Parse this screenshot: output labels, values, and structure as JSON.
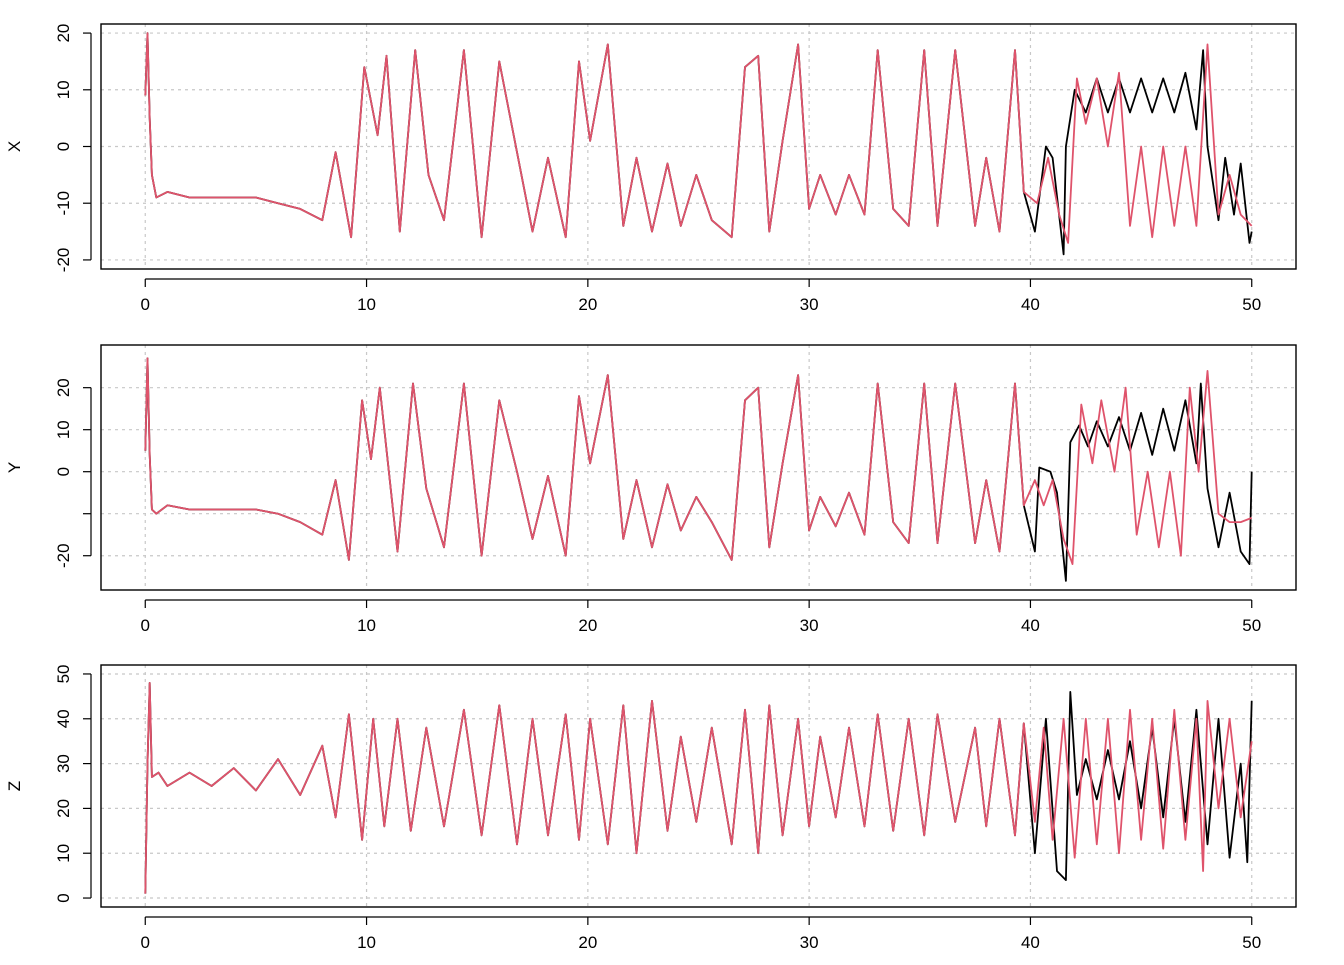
{
  "chart_data": [
    {
      "type": "line",
      "title": "",
      "xlabel": "",
      "ylabel": "X",
      "xlim": [
        0,
        50
      ],
      "ylim": [
        -20,
        20
      ],
      "xticks": [
        0,
        10,
        20,
        30,
        40,
        50
      ],
      "yticks": [
        -20,
        -10,
        0,
        10,
        20
      ],
      "xtick_labels": [
        "0",
        "10",
        "20",
        "30",
        "40",
        "50"
      ],
      "ytick_labels": [
        "-20",
        "-10",
        "0",
        "10",
        "20"
      ],
      "grid": true,
      "series": [
        {
          "color": "#000000",
          "x": [
            0,
            0.1,
            0.2,
            0.3,
            0.5,
            1,
            2,
            3,
            4,
            5,
            6,
            7,
            8,
            8.6,
            9.3,
            9.9,
            10.5,
            10.9,
            11.5,
            12.2,
            12.8,
            13.5,
            14.4,
            15.2,
            16,
            16.8,
            17.5,
            18.2,
            19,
            19.6,
            20.1,
            20.9,
            21.6,
            22.2,
            22.9,
            23.6,
            24.2,
            24.9,
            25.6,
            26.5,
            27.1,
            27.7,
            28.2,
            28.8,
            29.5,
            30,
            30.5,
            31.2,
            31.8,
            32.5,
            33.1,
            33.8,
            34.5,
            35.2,
            35.8,
            36.6,
            37.5,
            38,
            38.6,
            39.3,
            39.7,
            40.2,
            40.7,
            41,
            41.5,
            41.6,
            42,
            42.5,
            43,
            43.5,
            44,
            44.5,
            45,
            45.5,
            46,
            46.5,
            47,
            47.5,
            47.8,
            48,
            48.5,
            48.8,
            49.2,
            49.5,
            49.9,
            50
          ],
          "values": [
            9,
            20,
            5,
            -5,
            -9,
            -8,
            -9,
            -9,
            -9,
            -9,
            -10,
            -11,
            -13,
            -1,
            -16,
            14,
            2,
            16,
            -15,
            17,
            -5,
            -13,
            17,
            -16,
            15,
            -1,
            -15,
            -2,
            -16,
            15,
            1,
            18,
            -14,
            -2,
            -15,
            -3,
            -14,
            -5,
            -13,
            -16,
            14,
            16,
            -15,
            1,
            18,
            -11,
            -5,
            -12,
            -5,
            -12,
            17,
            -11,
            -14,
            17,
            -14,
            17,
            -14,
            -2,
            -15,
            17,
            -8,
            -15,
            0,
            -2,
            -19,
            0,
            10,
            6,
            12,
            6,
            12,
            6,
            12,
            6,
            12,
            6,
            13,
            3,
            17,
            0,
            -13,
            -2,
            -12,
            -3,
            -17,
            -15
          ]
        },
        {
          "color": "#DF536B",
          "x": [
            0,
            0.1,
            0.2,
            0.3,
            0.5,
            1,
            2,
            3,
            4,
            5,
            6,
            7,
            8,
            8.6,
            9.3,
            9.9,
            10.5,
            10.9,
            11.5,
            12.2,
            12.8,
            13.5,
            14.4,
            15.2,
            16,
            16.8,
            17.5,
            18.2,
            19,
            19.6,
            20.1,
            20.9,
            21.6,
            22.2,
            22.9,
            23.6,
            24.2,
            24.9,
            25.6,
            26.5,
            27.1,
            27.7,
            28.2,
            28.8,
            29.5,
            30,
            30.5,
            31.2,
            31.8,
            32.5,
            33.1,
            33.8,
            34.5,
            35.2,
            35.8,
            36.6,
            37.5,
            38,
            38.6,
            39.3,
            39.7,
            40.3,
            40.8,
            41.3,
            41.7,
            42.1,
            42.5,
            43,
            43.5,
            44,
            44.5,
            45,
            45.5,
            46,
            46.5,
            47,
            47.5,
            48,
            48.5,
            49,
            49.5,
            50
          ],
          "values": [
            9,
            20,
            5,
            -5,
            -9,
            -8,
            -9,
            -9,
            -9,
            -9,
            -10,
            -11,
            -13,
            -1,
            -16,
            14,
            2,
            16,
            -15,
            17,
            -5,
            -13,
            17,
            -16,
            15,
            -1,
            -15,
            -2,
            -16,
            15,
            1,
            18,
            -14,
            -2,
            -15,
            -3,
            -14,
            -5,
            -13,
            -16,
            14,
            16,
            -15,
            1,
            18,
            -11,
            -5,
            -12,
            -5,
            -12,
            17,
            -11,
            -14,
            17,
            -14,
            17,
            -14,
            -2,
            -15,
            17,
            -8,
            -10,
            -2,
            -12,
            -17,
            12,
            4,
            12,
            0,
            13,
            -14,
            0,
            -16,
            0,
            -14,
            0,
            -14,
            18,
            -12,
            -5,
            -12,
            -14
          ]
        }
      ]
    },
    {
      "type": "line",
      "title": "",
      "xlabel": "",
      "ylabel": "Y",
      "xlim": [
        0,
        50
      ],
      "ylim": [
        -26,
        28
      ],
      "xticks": [
        0,
        10,
        20,
        30,
        40,
        50
      ],
      "yticks": [
        -20,
        -10,
        0,
        10,
        20
      ],
      "xtick_labels": [
        "0",
        "10",
        "20",
        "30",
        "40",
        "50"
      ],
      "ytick_labels": [
        "-20",
        "",
        "0",
        "10",
        "20"
      ],
      "grid": true,
      "series": [
        {
          "color": "#000000",
          "x": [
            0,
            0.1,
            0.2,
            0.3,
            0.5,
            1,
            2,
            3,
            4,
            5,
            6,
            7,
            8,
            8.6,
            9.2,
            9.8,
            10.2,
            10.6,
            11.4,
            12.1,
            12.7,
            13.5,
            14.4,
            15.2,
            16,
            16.8,
            17.5,
            18.2,
            19,
            19.6,
            20.1,
            20.9,
            21.6,
            22.2,
            22.9,
            23.6,
            24.2,
            24.9,
            25.6,
            26.5,
            27.1,
            27.7,
            28.2,
            28.8,
            29.5,
            30,
            30.5,
            31.2,
            31.8,
            32.5,
            33.1,
            33.8,
            34.5,
            35.2,
            35.8,
            36.6,
            37.5,
            38,
            38.6,
            39.3,
            39.7,
            40.2,
            40.4,
            40.9,
            41.2,
            41.6,
            41.8,
            42.2,
            42.6,
            43,
            43.5,
            44,
            44.5,
            45,
            45.5,
            46,
            46.5,
            47,
            47.5,
            47.7,
            48,
            48.5,
            49,
            49.5,
            49.9,
            50
          ],
          "values": [
            5,
            27,
            4,
            -9,
            -10,
            -8,
            -9,
            -9,
            -9,
            -9,
            -10,
            -12,
            -15,
            -2,
            -21,
            17,
            3,
            20,
            -19,
            21,
            -4,
            -18,
            21,
            -20,
            17,
            0,
            -16,
            -1,
            -20,
            18,
            2,
            23,
            -16,
            -2,
            -18,
            -3,
            -14,
            -6,
            -12,
            -21,
            17,
            20,
            -18,
            2,
            23,
            -14,
            -6,
            -13,
            -5,
            -15,
            21,
            -12,
            -17,
            21,
            -17,
            21,
            -17,
            -2,
            -19,
            21,
            -8,
            -19,
            1,
            0,
            -5,
            -26,
            7,
            11,
            6,
            12,
            6,
            13,
            5,
            14,
            4,
            15,
            5,
            17,
            2,
            21,
            -4,
            -18,
            -5,
            -19,
            -22,
            0
          ]
        },
        {
          "color": "#DF536B",
          "x": [
            0,
            0.1,
            0.2,
            0.3,
            0.5,
            1,
            2,
            3,
            4,
            5,
            6,
            7,
            8,
            8.6,
            9.2,
            9.8,
            10.2,
            10.6,
            11.4,
            12.1,
            12.7,
            13.5,
            14.4,
            15.2,
            16,
            16.8,
            17.5,
            18.2,
            19,
            19.6,
            20.1,
            20.9,
            21.6,
            22.2,
            22.9,
            23.6,
            24.2,
            24.9,
            25.6,
            26.5,
            27.1,
            27.7,
            28.2,
            28.8,
            29.5,
            30,
            30.5,
            31.2,
            31.8,
            32.5,
            33.1,
            33.8,
            34.5,
            35.2,
            35.8,
            36.6,
            37.5,
            38,
            38.6,
            39.3,
            39.7,
            40.2,
            40.6,
            41,
            41.5,
            41.9,
            42.3,
            42.8,
            43.2,
            43.8,
            44.3,
            44.8,
            45.3,
            45.8,
            46.3,
            46.8,
            47.2,
            47.6,
            48,
            48.5,
            49,
            49.5,
            50
          ],
          "values": [
            5,
            27,
            4,
            -9,
            -10,
            -8,
            -9,
            -9,
            -9,
            -9,
            -10,
            -12,
            -15,
            -2,
            -21,
            17,
            3,
            20,
            -19,
            21,
            -4,
            -18,
            21,
            -20,
            17,
            0,
            -16,
            -1,
            -20,
            18,
            2,
            23,
            -16,
            -2,
            -18,
            -3,
            -14,
            -6,
            -12,
            -21,
            17,
            20,
            -18,
            2,
            23,
            -14,
            -6,
            -13,
            -5,
            -15,
            21,
            -12,
            -17,
            21,
            -17,
            21,
            -17,
            -2,
            -19,
            21,
            -8,
            -2,
            -8,
            -2,
            -16,
            -22,
            16,
            2,
            17,
            0,
            20,
            -15,
            0,
            -18,
            0,
            -20,
            20,
            0,
            24,
            -10,
            -12,
            -12,
            -11
          ]
        }
      ]
    },
    {
      "type": "line",
      "title": "",
      "xlabel": "",
      "ylabel": "Z",
      "xlim": [
        0,
        50
      ],
      "ylim": [
        0,
        50
      ],
      "xticks": [
        0,
        10,
        20,
        30,
        40,
        50
      ],
      "yticks": [
        0,
        10,
        20,
        30,
        40,
        50
      ],
      "xtick_labels": [
        "0",
        "10",
        "20",
        "30",
        "40",
        "50"
      ],
      "ytick_labels": [
        "0",
        "10",
        "20",
        "30",
        "40",
        "50"
      ],
      "grid": true,
      "series": [
        {
          "color": "#000000",
          "x": [
            0,
            0.1,
            0.2,
            0.3,
            0.6,
            1,
            2,
            3,
            4,
            5,
            6,
            7,
            8,
            8.6,
            9.2,
            9.8,
            10.3,
            10.8,
            11.4,
            12,
            12.7,
            13.5,
            14.4,
            15.2,
            16,
            16.8,
            17.5,
            18.2,
            19,
            19.6,
            20.1,
            20.9,
            21.6,
            22.2,
            22.9,
            23.6,
            24.2,
            24.9,
            25.6,
            26.5,
            27.1,
            27.7,
            28.2,
            28.8,
            29.5,
            30,
            30.5,
            31.2,
            31.8,
            32.5,
            33.1,
            33.8,
            34.5,
            35.2,
            35.8,
            36.6,
            37.5,
            38,
            38.6,
            39.3,
            39.7,
            40.2,
            40.7,
            41.2,
            41.6,
            41.8,
            42.1,
            42.5,
            43,
            43.5,
            44,
            44.5,
            45,
            45.5,
            46,
            46.5,
            47,
            47.5,
            48,
            48.5,
            49,
            49.5,
            49.8,
            50
          ],
          "values": [
            1,
            30,
            48,
            27,
            28,
            25,
            28,
            25,
            29,
            24,
            31,
            23,
            34,
            18,
            41,
            13,
            40,
            16,
            40,
            15,
            38,
            16,
            42,
            14,
            43,
            12,
            40,
            14,
            41,
            13,
            40,
            12,
            43,
            10,
            44,
            15,
            36,
            17,
            38,
            12,
            42,
            10,
            43,
            14,
            40,
            16,
            36,
            18,
            38,
            16,
            41,
            15,
            40,
            14,
            41,
            17,
            38,
            16,
            40,
            14,
            39,
            10,
            40,
            6,
            4,
            46,
            23,
            31,
            22,
            33,
            22,
            35,
            20,
            38,
            18,
            40,
            17,
            42,
            12,
            40,
            9,
            30,
            8,
            44
          ]
        },
        {
          "color": "#DF536B",
          "x": [
            0,
            0.1,
            0.2,
            0.3,
            0.6,
            1,
            2,
            3,
            4,
            5,
            6,
            7,
            8,
            8.6,
            9.2,
            9.8,
            10.3,
            10.8,
            11.4,
            12,
            12.7,
            13.5,
            14.4,
            15.2,
            16,
            16.8,
            17.5,
            18.2,
            19,
            19.6,
            20.1,
            20.9,
            21.6,
            22.2,
            22.9,
            23.6,
            24.2,
            24.9,
            25.6,
            26.5,
            27.1,
            27.7,
            28.2,
            28.8,
            29.5,
            30,
            30.5,
            31.2,
            31.8,
            32.5,
            33.1,
            33.8,
            34.5,
            35.2,
            35.8,
            36.6,
            37.5,
            38,
            38.6,
            39.3,
            39.7,
            40.2,
            40.6,
            41,
            41.5,
            42,
            42.5,
            43,
            43.5,
            44,
            44.5,
            45,
            45.5,
            46,
            46.5,
            47,
            47.5,
            47.8,
            48,
            48.5,
            49,
            49.5,
            50
          ],
          "values": [
            1,
            30,
            48,
            27,
            28,
            25,
            28,
            25,
            29,
            24,
            31,
            23,
            34,
            18,
            41,
            13,
            40,
            16,
            40,
            15,
            38,
            16,
            42,
            14,
            43,
            12,
            40,
            14,
            41,
            13,
            40,
            12,
            43,
            10,
            44,
            15,
            36,
            17,
            38,
            12,
            42,
            10,
            43,
            14,
            40,
            16,
            36,
            18,
            38,
            16,
            41,
            15,
            40,
            14,
            41,
            17,
            38,
            16,
            40,
            14,
            39,
            17,
            38,
            13,
            40,
            9,
            40,
            12,
            40,
            10,
            42,
            13,
            40,
            11,
            42,
            13,
            40,
            6,
            44,
            20,
            40,
            18,
            35
          ]
        }
      ]
    }
  ]
}
